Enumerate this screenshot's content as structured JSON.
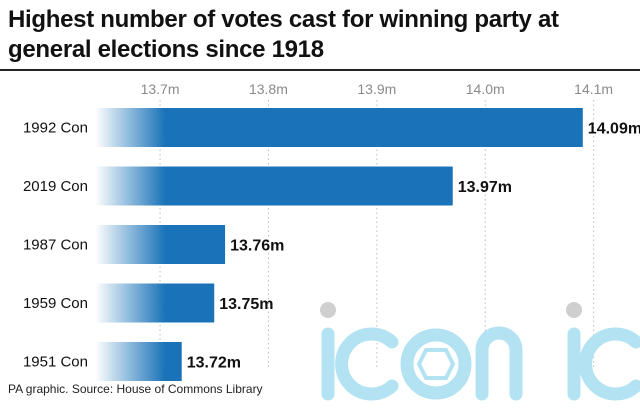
{
  "chart_data": {
    "type": "bar",
    "orientation": "horizontal",
    "title": "Highest number of votes cast for winning party at general elections since 1918",
    "categories": [
      "1992 Con",
      "2019 Con",
      "1987 Con",
      "1959 Con",
      "1951 Con"
    ],
    "values": [
      14.09,
      13.97,
      13.76,
      13.75,
      13.72
    ],
    "value_labels": [
      "14.09m",
      "13.97m",
      "13.76m",
      "13.75m",
      "13.72m"
    ],
    "xticks": [
      13.7,
      13.8,
      13.9,
      14.0,
      14.1
    ],
    "xtick_labels": [
      "13.7m",
      "13.8m",
      "13.9m",
      "14.0m",
      "14.1m"
    ],
    "xlim": [
      13.64,
      14.14
    ],
    "xlabel": "",
    "ylabel": "",
    "grid": "vertical dotted",
    "bar_color": "#1a73b8"
  },
  "source": "PA graphic. Source: House of Commons Library",
  "watermark": {
    "text": "iconic",
    "color": "#b3e3f2",
    "dot_color": "#cfcfcf"
  }
}
